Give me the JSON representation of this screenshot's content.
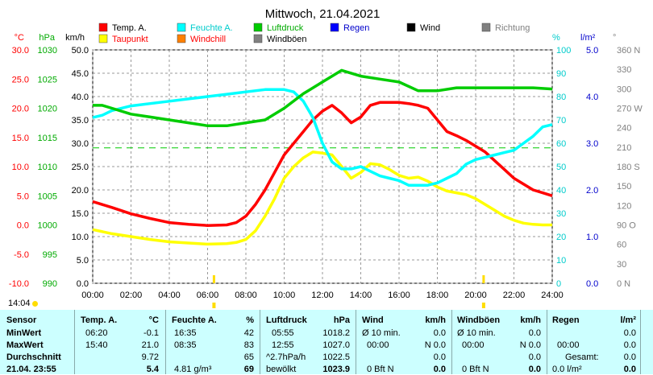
{
  "chart_data": {
    "type": "line",
    "title": "Mittwoch, 21.04.2021",
    "legend": [
      {
        "name": "Temp. A.",
        "color": "#ff0000"
      },
      {
        "name": "Feuchte A.",
        "color": "#00ffff"
      },
      {
        "name": "Luftdruck",
        "color": "#00cc00"
      },
      {
        "name": "Regen",
        "color": "#0000ff",
        "text_color": "#0000cc"
      },
      {
        "name": "Wind",
        "color": "#000000"
      },
      {
        "name": "Richtung",
        "color": "#808080",
        "text_color": "#808080"
      },
      {
        "name": "Taupunkt",
        "color": "#ffff00",
        "text_color": "#ff0000"
      },
      {
        "name": "Windchill",
        "color": "#ff8000",
        "text_color": "#ff0000"
      },
      {
        "name": "Windböen",
        "color": "#808080"
      }
    ],
    "axes": {
      "temp": {
        "unit": "°C",
        "color": "#ff0000",
        "min": -10,
        "max": 30,
        "ticks": [
          "30.0",
          "25.0",
          "20.0",
          "15.0",
          "10.0",
          "5.0",
          "0.0",
          "-5.0",
          "-10.0"
        ]
      },
      "pressure": {
        "unit": "hPa",
        "color": "#00aa00",
        "min": 990,
        "max": 1030,
        "ticks": [
          "1030",
          "1025",
          "1020",
          "1015",
          "1010",
          "1005",
          "1000",
          "995",
          "990"
        ]
      },
      "wind": {
        "unit": "km/h",
        "color": "#000000",
        "min": 0,
        "max": 50,
        "ticks": [
          "50.0",
          "45.0",
          "40.0",
          "35.0",
          "30.0",
          "25.0",
          "20.0",
          "15.0",
          "10.0",
          "5.0",
          "0.0"
        ]
      },
      "humidity": {
        "unit": "%",
        "color": "#00cccc",
        "min": 0,
        "max": 100,
        "ticks": [
          "100",
          "90",
          "80",
          "70",
          "60",
          "50",
          "40",
          "30",
          "20",
          "10",
          "0"
        ]
      },
      "rain": {
        "unit": "l/m²",
        "color": "#0000cc",
        "min": 0,
        "max": 5,
        "ticks": [
          "5.0",
          "4.0",
          "3.0",
          "2.0",
          "1.0",
          "0.0"
        ]
      },
      "direction": {
        "unit": "°",
        "color": "#808080",
        "min": 0,
        "max": 360,
        "ticks": [
          "360 N",
          "330",
          "300",
          "270 W",
          "240",
          "210",
          "180 S",
          "150",
          "120",
          "90 O",
          "60",
          "30",
          "0   N"
        ]
      }
    },
    "x_ticks": [
      "00:00",
      "02:00",
      "04:00",
      "06:00",
      "08:00",
      "10:00",
      "12:00",
      "14:00",
      "16:00",
      "18:00",
      "20:00",
      "22:00",
      "24:00"
    ],
    "x_range_hours": [
      0,
      24
    ],
    "grid": true,
    "sunrise": "06:20",
    "sunset": "20:25",
    "dew_point_reference_hum": 58,
    "series": [
      {
        "name": "Temp. A.",
        "axis": "temp",
        "color": "#ff0000",
        "x": [
          0,
          1,
          2,
          3,
          4,
          5,
          6,
          7,
          7.5,
          8,
          8.5,
          9,
          9.5,
          10,
          10.5,
          11,
          11.5,
          12,
          12.5,
          13,
          13.5,
          14,
          14.5,
          15,
          15.5,
          16,
          16.5,
          17,
          17.5,
          18,
          18.5,
          19,
          19.5,
          20,
          20.5,
          21,
          21.5,
          22,
          22.5,
          23,
          23.5,
          24
        ],
        "y": [
          4,
          3,
          1.9,
          1.1,
          0.4,
          0.1,
          -0.1,
          0,
          0.4,
          1.5,
          3.5,
          6,
          9,
          12,
          14,
          16,
          18,
          19.5,
          20.5,
          19.2,
          17.5,
          18.5,
          20.5,
          21,
          21,
          21,
          20.8,
          20.5,
          20,
          18,
          16,
          15.3,
          14.5,
          13.5,
          12.5,
          11,
          9.5,
          8,
          7,
          6,
          5.5,
          5
        ]
      },
      {
        "name": "Taupunkt",
        "axis": "temp",
        "color": "#ffff00",
        "x": [
          0,
          1,
          2,
          3,
          4,
          5,
          6,
          7,
          7.5,
          8,
          8.5,
          9,
          9.5,
          10,
          10.5,
          11,
          11.5,
          12,
          12.5,
          13,
          13.5,
          14,
          14.5,
          15,
          15.5,
          16,
          16.5,
          17,
          17.5,
          18,
          18.5,
          19,
          19.5,
          20,
          20.5,
          21,
          21.5,
          22,
          22.5,
          23,
          23.5,
          24
        ],
        "y": [
          -0.8,
          -1.5,
          -2,
          -2.5,
          -2.9,
          -3.1,
          -3.3,
          -3.2,
          -3,
          -2.5,
          -1,
          1.5,
          4.5,
          8,
          10,
          11.5,
          12.5,
          12.3,
          12,
          10,
          8,
          9,
          10.5,
          10.3,
          9.5,
          8.5,
          8,
          8.2,
          7.5,
          6.5,
          5.8,
          5.5,
          5.2,
          4.5,
          3.5,
          2.5,
          1.5,
          0.8,
          0.3,
          0.1,
          0,
          0
        ]
      },
      {
        "name": "Feuchte A.",
        "axis": "humidity",
        "color": "#00ffff",
        "x": [
          0,
          0.5,
          1,
          2,
          3,
          4,
          5,
          6,
          7,
          8,
          9,
          10,
          10.5,
          11,
          11.5,
          12,
          12.5,
          13,
          13.5,
          14,
          14.5,
          15,
          15.5,
          16,
          16.5,
          17,
          17.5,
          18,
          18.5,
          19,
          19.5,
          20,
          20.5,
          21,
          21.5,
          22,
          22.5,
          23,
          23.5,
          24
        ],
        "y": [
          71,
          72,
          74,
          76,
          77,
          78,
          79,
          80,
          81,
          82,
          83,
          83,
          82,
          78,
          71,
          60,
          52,
          49,
          49,
          50,
          48,
          46,
          45,
          44,
          42,
          42,
          42,
          43,
          45,
          47,
          51,
          53,
          54,
          55,
          56,
          57,
          60,
          63,
          67,
          68
        ]
      },
      {
        "name": "Luftdruck",
        "axis": "pressure",
        "color": "#00cc00",
        "x": [
          0,
          0.5,
          1,
          2,
          3,
          4,
          5,
          6,
          7,
          8,
          9,
          10,
          11,
          12,
          13,
          14,
          15,
          16,
          17,
          18,
          19,
          20,
          21,
          22,
          23,
          24
        ],
        "y": [
          1020.5,
          1020.5,
          1020,
          1019,
          1018.5,
          1018,
          1017.5,
          1017,
          1017,
          1017.5,
          1018,
          1020,
          1022.5,
          1024.5,
          1026.5,
          1025.5,
          1025,
          1024.5,
          1023,
          1023,
          1023.5,
          1023.5,
          1023.5,
          1023.5,
          1023.5,
          1023.3
        ]
      }
    ]
  },
  "time_marker": "14:04",
  "stats": {
    "sensor": {
      "header": "Sensor",
      "labels": [
        "MinWert",
        "MaxWert",
        "Durchschnitt",
        "21.04. 23:55"
      ]
    },
    "temp": {
      "header": "Temp. A.",
      "unit": "°C",
      "rows": [
        [
          "06:20",
          "-0.1"
        ],
        [
          "15:40",
          "21.0"
        ],
        [
          "",
          "9.72"
        ],
        [
          "",
          "5.4"
        ]
      ]
    },
    "hum": {
      "header": "Feuchte A.",
      "unit": "%",
      "rows": [
        [
          "16:35",
          "42"
        ],
        [
          "08:35",
          "83"
        ],
        [
          "",
          "65"
        ],
        [
          "4.81 g/m³",
          "69"
        ]
      ]
    },
    "press": {
      "header": "Luftdruck",
      "unit": "hPa",
      "rows": [
        [
          "05:55",
          "1018.2"
        ],
        [
          "12:55",
          "1027.0"
        ],
        [
          "^2.7hPa/h",
          "1022.5"
        ],
        [
          "bewölkt",
          "1023.9"
        ]
      ]
    },
    "wind": {
      "header": "Wind",
      "unit": "km/h",
      "rows": [
        [
          "Ø 10 min.",
          "0.0"
        ],
        [
          "00:00",
          "N 0.0"
        ],
        [
          "",
          "0.0"
        ],
        [
          "0 Bft N",
          "0.0"
        ]
      ]
    },
    "gust": {
      "header": "Windböen",
      "unit": "km/h",
      "rows": [
        [
          "Ø 10 min.",
          "0.0"
        ],
        [
          "00:00",
          "N 0.0"
        ],
        [
          "",
          "0.0"
        ],
        [
          "0 Bft N",
          "0.0"
        ]
      ]
    },
    "rain": {
      "header": "Regen",
      "unit": "l/m²",
      "rows": [
        [
          "",
          "0.0"
        ],
        [
          "00:00",
          "0.0"
        ],
        [
          "Gesamt:",
          "0.0"
        ],
        [
          "0.0 l/m²",
          "0.0"
        ]
      ]
    }
  }
}
